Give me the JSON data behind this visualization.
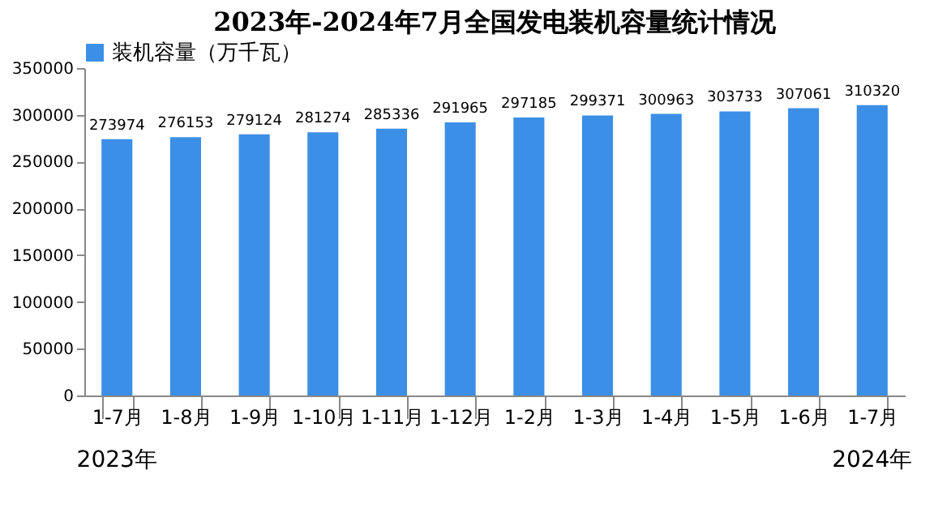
{
  "chart_data": {
    "type": "bar",
    "title": "2023年-2024年7月全国发电装机容量统计情况",
    "categories": [
      "1-7月",
      "1-8月",
      "1-9月",
      "1-10月",
      "1-11月",
      "1-12月",
      "1-2月",
      "1-3月",
      "1-4月",
      "1-5月",
      "1-6月",
      "1-7月"
    ],
    "series": [
      {
        "name": "装机容量（万千瓦）",
        "color": "#3b8fe6",
        "values": [
          273974,
          276153,
          279124,
          281274,
          285336,
          291965,
          297185,
          299371,
          300963,
          303733,
          307061,
          310320
        ]
      }
    ],
    "ylim": [
      0,
      350000
    ],
    "yticks": [
      0,
      50000,
      100000,
      150000,
      200000,
      250000,
      300000,
      350000
    ],
    "data_labels": true,
    "legend": "top",
    "grid": false,
    "annotations": [
      "2023年",
      "2024年"
    ]
  }
}
